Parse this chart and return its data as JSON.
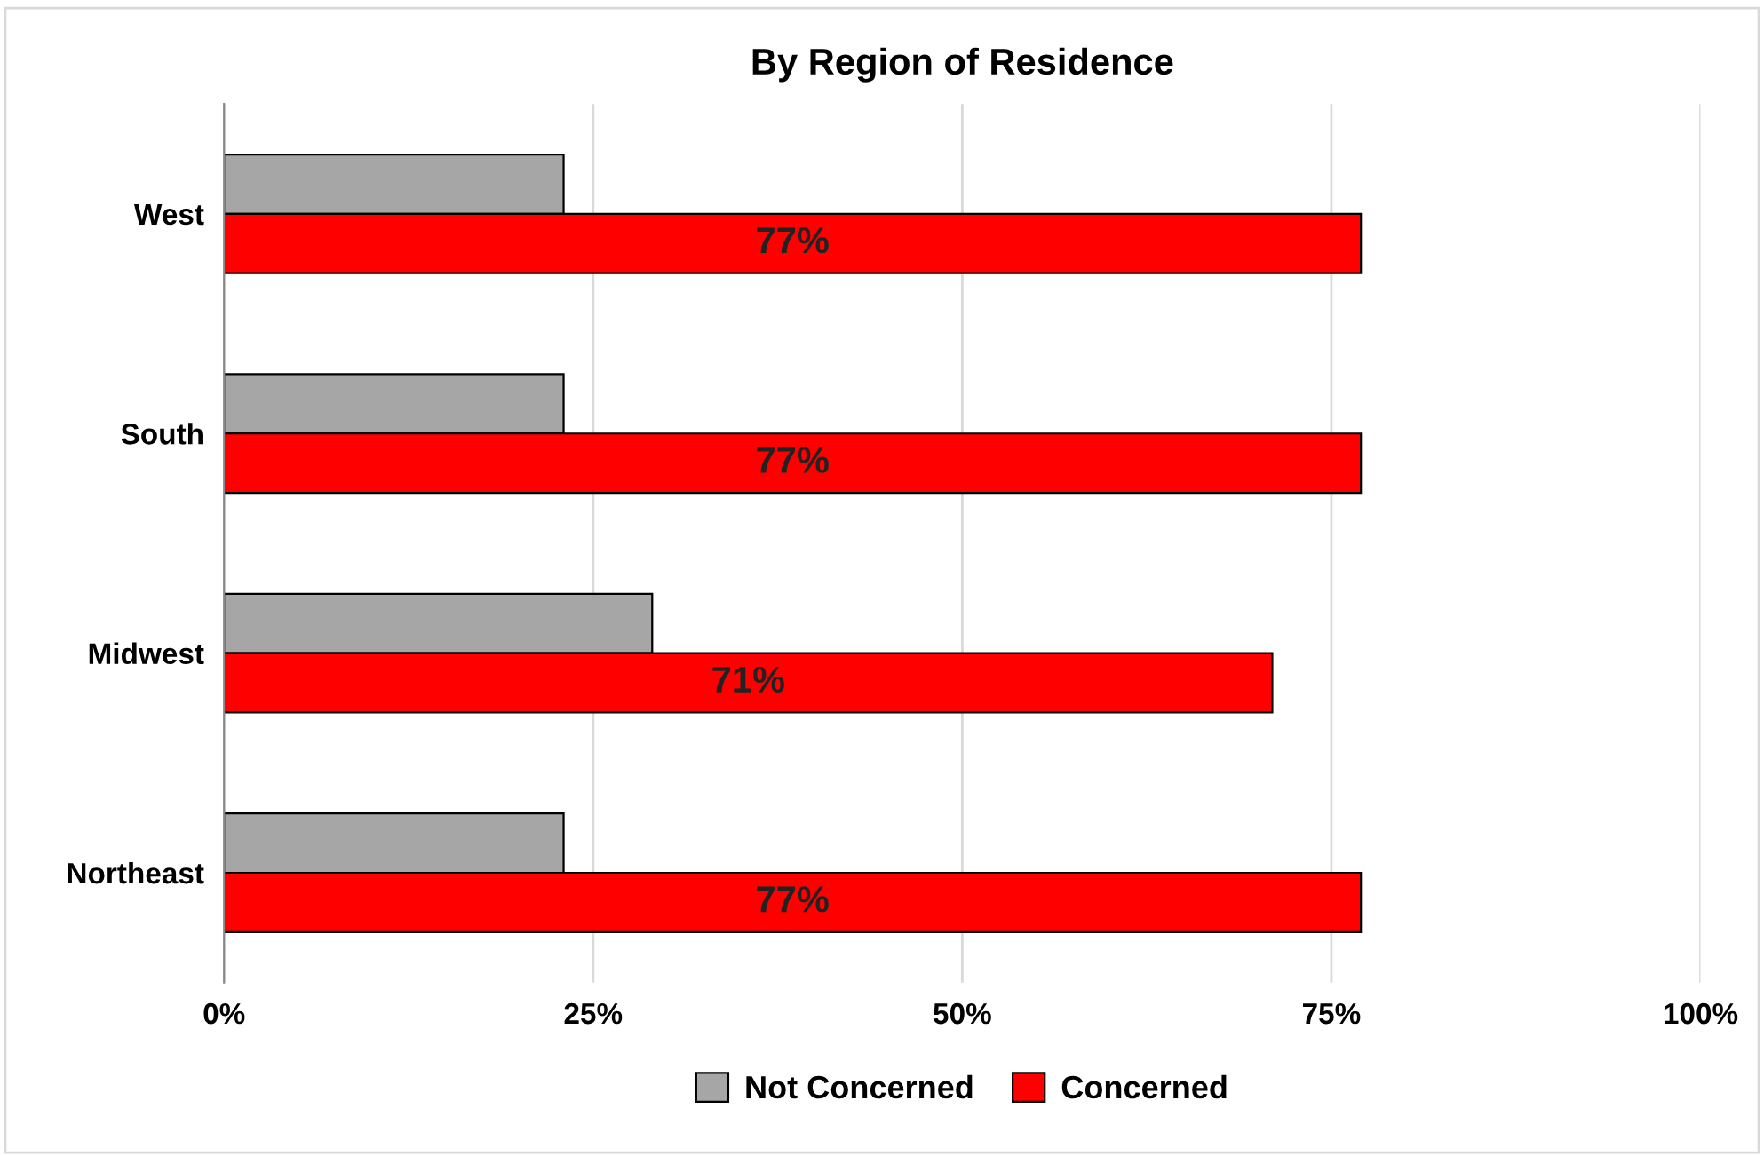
{
  "chart_data": {
    "type": "bar",
    "orientation": "horizontal",
    "title": "By Region of Residence",
    "categories": [
      "West",
      "South",
      "Midwest",
      "Northeast"
    ],
    "series": [
      {
        "name": "Not Concerned",
        "color": "#a6a6a6",
        "values": [
          23,
          23,
          29,
          23
        ]
      },
      {
        "name": "Concerned",
        "color": "#ff0000",
        "values": [
          77,
          77,
          71,
          77
        ],
        "value_labels": [
          "77%",
          "77%",
          "71%",
          "77%"
        ]
      }
    ],
    "xlim": [
      0,
      100
    ],
    "xticks": [
      {
        "value": 0,
        "label": "0%"
      },
      {
        "value": 25,
        "label": "25%"
      },
      {
        "value": 50,
        "label": "50%"
      },
      {
        "value": 75,
        "label": "75%"
      },
      {
        "value": 100,
        "label": "100%"
      }
    ],
    "grid": "x",
    "legend": "bottom"
  }
}
